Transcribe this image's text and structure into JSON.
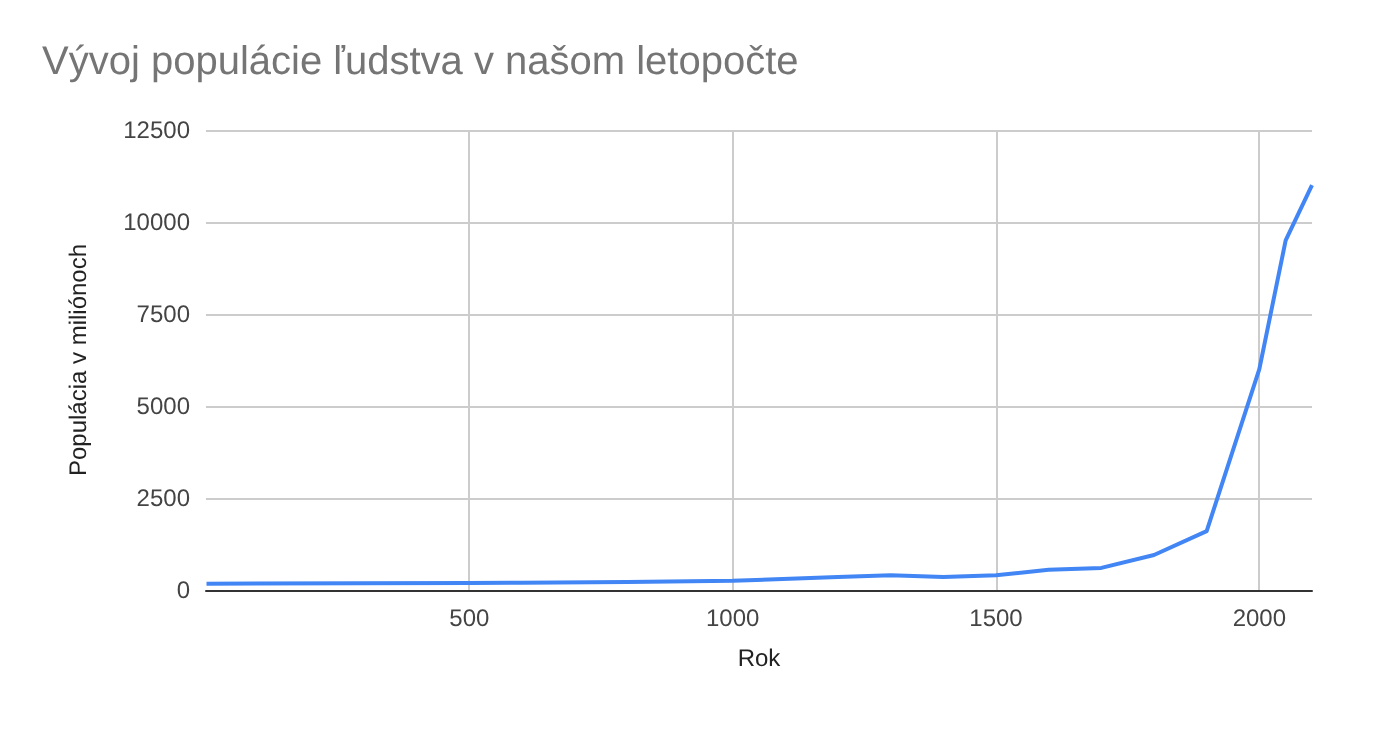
{
  "chart_data": {
    "type": "line",
    "title": "Vývoj populácie ľudstva v našom letopočte",
    "xlabel": "Rok",
    "ylabel": "Populácia v miliónoch",
    "x": [
      1,
      500,
      600,
      800,
      1000,
      1200,
      1300,
      1400,
      1500,
      1600,
      1700,
      1800,
      1900,
      2000,
      2050,
      2100
    ],
    "series": [
      {
        "color": "#4285f4",
        "values": [
          170,
          190,
          200,
          220,
          250,
          350,
          400,
          350,
          400,
          550,
          600,
          950,
          1600,
          6000,
          9500,
          11000
        ]
      }
    ],
    "xlim": [
      0,
      2100
    ],
    "xticks": [
      500,
      1000,
      1500,
      2000
    ],
    "ylim": [
      0,
      12500
    ],
    "yticks": [
      0,
      2500,
      5000,
      7500,
      10000,
      12500
    ],
    "grid": true,
    "marker": "none",
    "line_style": "solid"
  }
}
